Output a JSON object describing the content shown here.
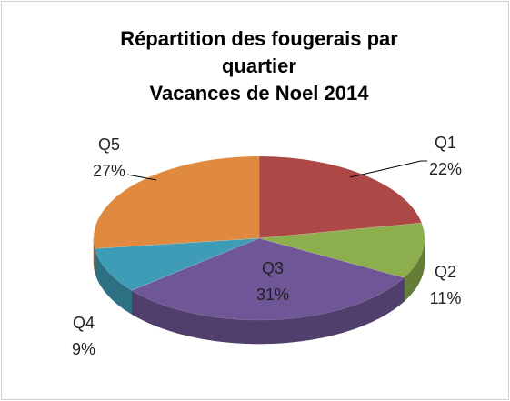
{
  "chart_data": {
    "type": "pie",
    "title": "Répartition des fougerais par quartier",
    "subtitle": "Vacances de Noel 2014",
    "categories": [
      "Q1",
      "Q2",
      "Q3",
      "Q4",
      "Q5"
    ],
    "values": [
      22,
      11,
      31,
      9,
      27
    ],
    "value_labels": [
      "22%",
      "11%",
      "31%",
      "9%",
      "27%"
    ],
    "colors": [
      "#ac4846",
      "#8cae4c",
      "#6f5797",
      "#3f9cb7",
      "#df8a3e"
    ],
    "start_angle": 90,
    "direction": "clockwise",
    "three_d": true
  }
}
